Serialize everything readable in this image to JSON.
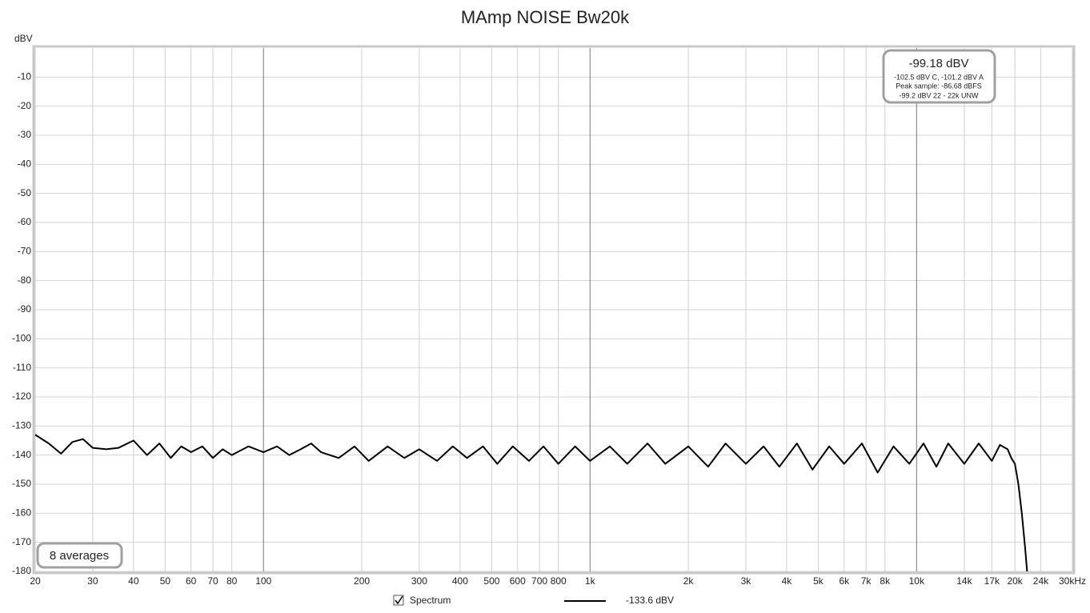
{
  "chart_data": {
    "type": "line",
    "title": "MAmp NOISE Bw20k",
    "y_label": "dBV",
    "xlim": [
      20,
      30000
    ],
    "ylim": [
      -180,
      0
    ],
    "log_x": true,
    "grid": true,
    "xticks": [
      20,
      30,
      40,
      50,
      60,
      70,
      80,
      100,
      200,
      300,
      400,
      500,
      600,
      700,
      800,
      {
        "value": 1000,
        "label": "1k"
      },
      {
        "value": 2000,
        "label": "2k"
      },
      {
        "value": 3000,
        "label": "3k"
      },
      {
        "value": 4000,
        "label": "4k"
      },
      {
        "value": 5000,
        "label": "5k"
      },
      {
        "value": 6000,
        "label": "6k"
      },
      {
        "value": 7000,
        "label": "7k"
      },
      {
        "value": 8000,
        "label": "8k"
      },
      {
        "value": 10000,
        "label": "10k"
      },
      {
        "value": 14000,
        "label": "14k"
      },
      {
        "value": 17000,
        "label": "17k"
      },
      {
        "value": 20000,
        "label": "20k"
      },
      {
        "value": 24000,
        "label": "24k"
      },
      {
        "value": 30000,
        "label": "30kHz"
      }
    ],
    "yticks": [
      -180,
      -170,
      -160,
      -150,
      -140,
      -130,
      -120,
      -110,
      -100,
      -90,
      -80,
      -70,
      -60,
      -50,
      -40,
      -30,
      -20,
      -10
    ],
    "x": [
      20,
      22,
      24,
      26,
      28,
      30,
      33,
      36,
      40,
      44,
      48,
      52,
      56,
      60,
      65,
      70,
      75,
      80,
      90,
      100,
      110,
      120,
      130,
      140,
      150,
      170,
      190,
      210,
      240,
      270,
      300,
      340,
      380,
      420,
      470,
      520,
      580,
      650,
      720,
      800,
      900,
      1000,
      1150,
      1300,
      1500,
      1700,
      2000,
      2300,
      2600,
      3000,
      3400,
      3800,
      4300,
      4800,
      5400,
      6000,
      6800,
      7600,
      8500,
      9500,
      10500,
      11500,
      12500,
      14000,
      15500,
      17000,
      18000,
      19000,
      19500,
      20000,
      20500,
      21000,
      21500,
      21800
    ],
    "series": [
      {
        "name": "Spectrum",
        "color": "#000000",
        "legend_value": "-133.6 dBV",
        "values": [
          -133,
          -136,
          -139.5,
          -135.5,
          -134.5,
          -137.5,
          -138,
          -137.5,
          -135,
          -140,
          -136,
          -141,
          -137,
          -139,
          -137,
          -141,
          -138,
          -140,
          -137,
          -139,
          -137,
          -140,
          -138,
          -136,
          -139,
          -141,
          -137,
          -142,
          -137,
          -141,
          -138,
          -142,
          -137,
          -141,
          -137,
          -143,
          -137,
          -142,
          -137,
          -143,
          -137,
          -142,
          -137,
          -143,
          -136,
          -143,
          -137,
          -144,
          -136,
          -143,
          -137,
          -144,
          -136,
          -145,
          -137,
          -143,
          -136,
          -146,
          -137,
          -143,
          -136,
          -144,
          -136,
          -143,
          -136,
          -142,
          -136.5,
          -138,
          -141,
          -143,
          -150,
          -160,
          -172,
          -180
        ]
      }
    ],
    "annotation": {
      "headline": "-99.18 dBV",
      "lines": [
        "-102.5 dBV C, -101.2 dBV A",
        "Peak sample: -86.68 dBFS",
        "-99.2 dBV 22 - 22k UNW"
      ]
    },
    "averages_note": "8 averages"
  }
}
